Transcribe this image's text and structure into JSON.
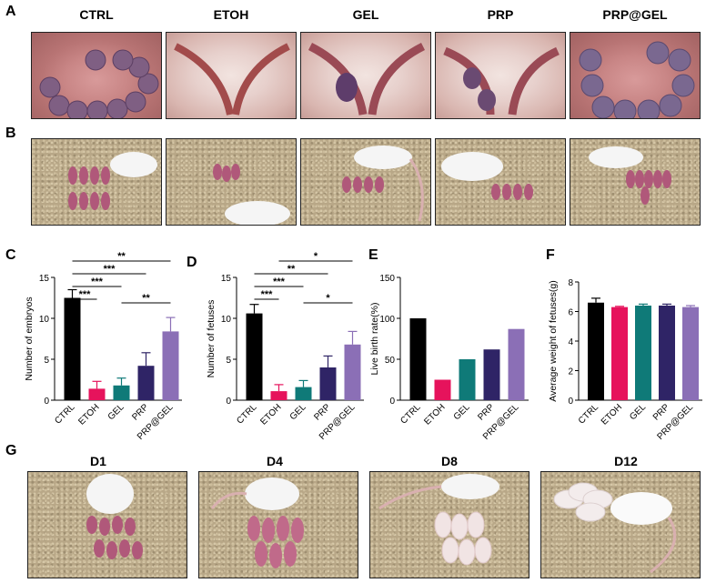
{
  "panel_labels": {
    "A": "A",
    "B": "B",
    "C": "C",
    "D": "D",
    "E": "E",
    "F": "F",
    "G": "G"
  },
  "groups": [
    "CTRL",
    "ETOH",
    "GEL",
    "PRP",
    "PRP@GEL"
  ],
  "days": [
    "D1",
    "D4",
    "D8",
    "D12"
  ],
  "colors": {
    "CTRL": "#000000",
    "ETOH": "#e6135c",
    "GEL": "#0f7a78",
    "PRP": "#2f2466",
    "PRP@GEL": "#8b6fb6"
  },
  "chart_data": [
    {
      "panel": "C",
      "type": "bar",
      "categories": [
        "CTRL",
        "ETOH",
        "GEL",
        "PRP",
        "PRP@GEL"
      ],
      "values": [
        12.5,
        1.4,
        1.8,
        4.2,
        8.4
      ],
      "errors": [
        1.0,
        0.9,
        0.9,
        1.6,
        1.7
      ],
      "ylabel": "Number of embryos",
      "ylim": [
        0,
        15
      ],
      "yticks": [
        0,
        5,
        10,
        15
      ],
      "significance": [
        {
          "from": 0,
          "to": 4,
          "label": "**"
        },
        {
          "from": 0,
          "to": 3,
          "label": "***"
        },
        {
          "from": 0,
          "to": 2,
          "label": "***"
        },
        {
          "from": 0,
          "to": 1,
          "label": "***"
        },
        {
          "from": 2,
          "to": 4,
          "label": "**"
        }
      ]
    },
    {
      "panel": "D",
      "type": "bar",
      "categories": [
        "CTRL",
        "ETOH",
        "GEL",
        "PRP",
        "PRP@GEL"
      ],
      "values": [
        10.6,
        1.1,
        1.6,
        4.0,
        6.8
      ],
      "errors": [
        1.1,
        0.8,
        0.8,
        1.4,
        1.6
      ],
      "ylabel": "Number of fetuses",
      "ylim": [
        0,
        15
      ],
      "yticks": [
        0,
        5,
        10,
        15
      ],
      "significance": [
        {
          "from": 1,
          "to": 4,
          "label": "*"
        },
        {
          "from": 0,
          "to": 3,
          "label": "**"
        },
        {
          "from": 0,
          "to": 2,
          "label": "***"
        },
        {
          "from": 0,
          "to": 1,
          "label": "***"
        },
        {
          "from": 2,
          "to": 4,
          "label": "*"
        }
      ]
    },
    {
      "panel": "E",
      "type": "bar",
      "categories": [
        "CTRL",
        "ETOH",
        "GEL",
        "PRP",
        "PRP@GEL"
      ],
      "values": [
        100,
        25,
        50,
        62,
        87
      ],
      "errors": [
        0,
        0,
        0,
        0,
        0
      ],
      "ylabel": "Live birth rate(%)",
      "ylim": [
        0,
        150
      ],
      "yticks": [
        0,
        50,
        100,
        150
      ],
      "significance": []
    },
    {
      "panel": "F",
      "type": "bar",
      "categories": [
        "CTRL",
        "ETOH",
        "GEL",
        "PRP",
        "PRP@GEL"
      ],
      "values": [
        6.6,
        6.3,
        6.4,
        6.4,
        6.3
      ],
      "errors": [
        0.3,
        0.05,
        0.1,
        0.1,
        0.1
      ],
      "ylabel": "Average weight of fetuses(g)",
      "ylim": [
        0,
        8
      ],
      "yticks": [
        0,
        2,
        4,
        6,
        8
      ],
      "significance": []
    }
  ]
}
